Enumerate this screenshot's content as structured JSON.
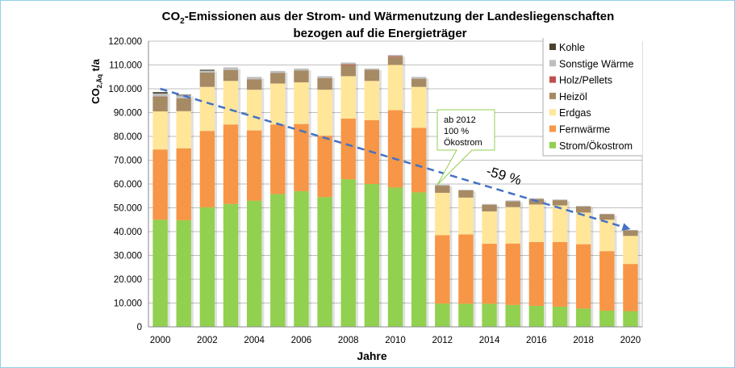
{
  "chart_data": {
    "type": "bar",
    "stacked": true,
    "title_line1": "CO",
    "title_sub": "2",
    "title_line1_rest": "-Emissionen aus der Strom- und Wärmenutzung der Landesliegenschaften",
    "title_line2": "bezogen auf die Energieträger",
    "ylabel_main": "CO",
    "ylabel_sub": "2,Äq",
    "ylabel_unit": " t/a",
    "xlabel": "Jahre",
    "ylim": [
      0,
      120000
    ],
    "yticks": [
      "0",
      "10.000",
      "20.000",
      "30.000",
      "40.000",
      "50.000",
      "60.000",
      "70.000",
      "80.000",
      "90.000",
      "100.000",
      "110.000",
      "120.000"
    ],
    "grid": true,
    "legend_position": "top-right",
    "categories": [
      2000,
      2001,
      2002,
      2003,
      2004,
      2005,
      2006,
      2007,
      2008,
      2009,
      2010,
      2011,
      2012,
      2013,
      2014,
      2015,
      2016,
      2017,
      2018,
      2019,
      2020
    ],
    "xtick_labels": [
      "2000",
      "2002",
      "2004",
      "2006",
      "2008",
      "2010",
      "2012",
      "2014",
      "2016",
      "2018",
      "2020"
    ],
    "series": [
      {
        "name": "Strom/Ökostrom",
        "color": "#92d050",
        "values": [
          45000,
          44800,
          50200,
          51600,
          53000,
          55800,
          57000,
          54500,
          62000,
          60000,
          58500,
          56500,
          9800,
          9700,
          9700,
          9200,
          8800,
          8500,
          7700,
          6800,
          6600
        ]
      },
      {
        "name": "Fernwärme",
        "color": "#f79646",
        "values": [
          29500,
          30200,
          32100,
          33400,
          29500,
          29200,
          28200,
          25800,
          25500,
          26800,
          32500,
          27100,
          28700,
          29100,
          25200,
          25800,
          26800,
          27100,
          27000,
          25000,
          19800
        ]
      },
      {
        "name": "Erdgas",
        "color": "#ffe699",
        "values": [
          16000,
          15600,
          18500,
          18300,
          17100,
          17200,
          17500,
          19300,
          17800,
          16500,
          19000,
          17200,
          17800,
          15500,
          13600,
          15300,
          15800,
          15400,
          13300,
          13200,
          11800
        ]
      },
      {
        "name": "Heizöl",
        "color": "#a68a64",
        "values": [
          6300,
          5400,
          6000,
          4600,
          4400,
          4500,
          5000,
          4900,
          4700,
          4700,
          3500,
          3400,
          3000,
          3000,
          2800,
          2400,
          2300,
          2200,
          2500,
          2300,
          2300
        ]
      },
      {
        "name": "Holz/Pellets",
        "color": "#c0504d",
        "values": [
          0,
          0,
          0,
          0,
          0,
          0,
          0,
          0,
          300,
          0,
          300,
          0,
          0,
          0,
          0,
          0,
          0,
          0,
          0,
          0,
          0
        ]
      },
      {
        "name": "Sonstige Wärme",
        "color": "#bfbfbf",
        "values": [
          1200,
          1200,
          800,
          1100,
          1000,
          800,
          800,
          800,
          700,
          500,
          400,
          800,
          400,
          300,
          300,
          400,
          300,
          300,
          300,
          200,
          200
        ]
      },
      {
        "name": "Kohle",
        "color": "#4a4230",
        "values": [
          600,
          300,
          400,
          0,
          0,
          0,
          0,
          0,
          0,
          0,
          0,
          0,
          0,
          0,
          0,
          0,
          0,
          0,
          0,
          0,
          0
        ]
      }
    ],
    "legend_order": [
      "Kohle",
      "Sonstige Wärme",
      "Holz/Pellets",
      "Heizöl",
      "Erdgas",
      "Fernwärme",
      "Strom/Ökostrom"
    ],
    "trend": {
      "from": [
        2000,
        100000
      ],
      "to": [
        2020,
        41000
      ],
      "color": "#4472c4",
      "label": "-59 %"
    },
    "callout": {
      "lines": [
        "ab 2012",
        "100 %",
        "Ökostrom"
      ],
      "border": "#92d050"
    }
  }
}
